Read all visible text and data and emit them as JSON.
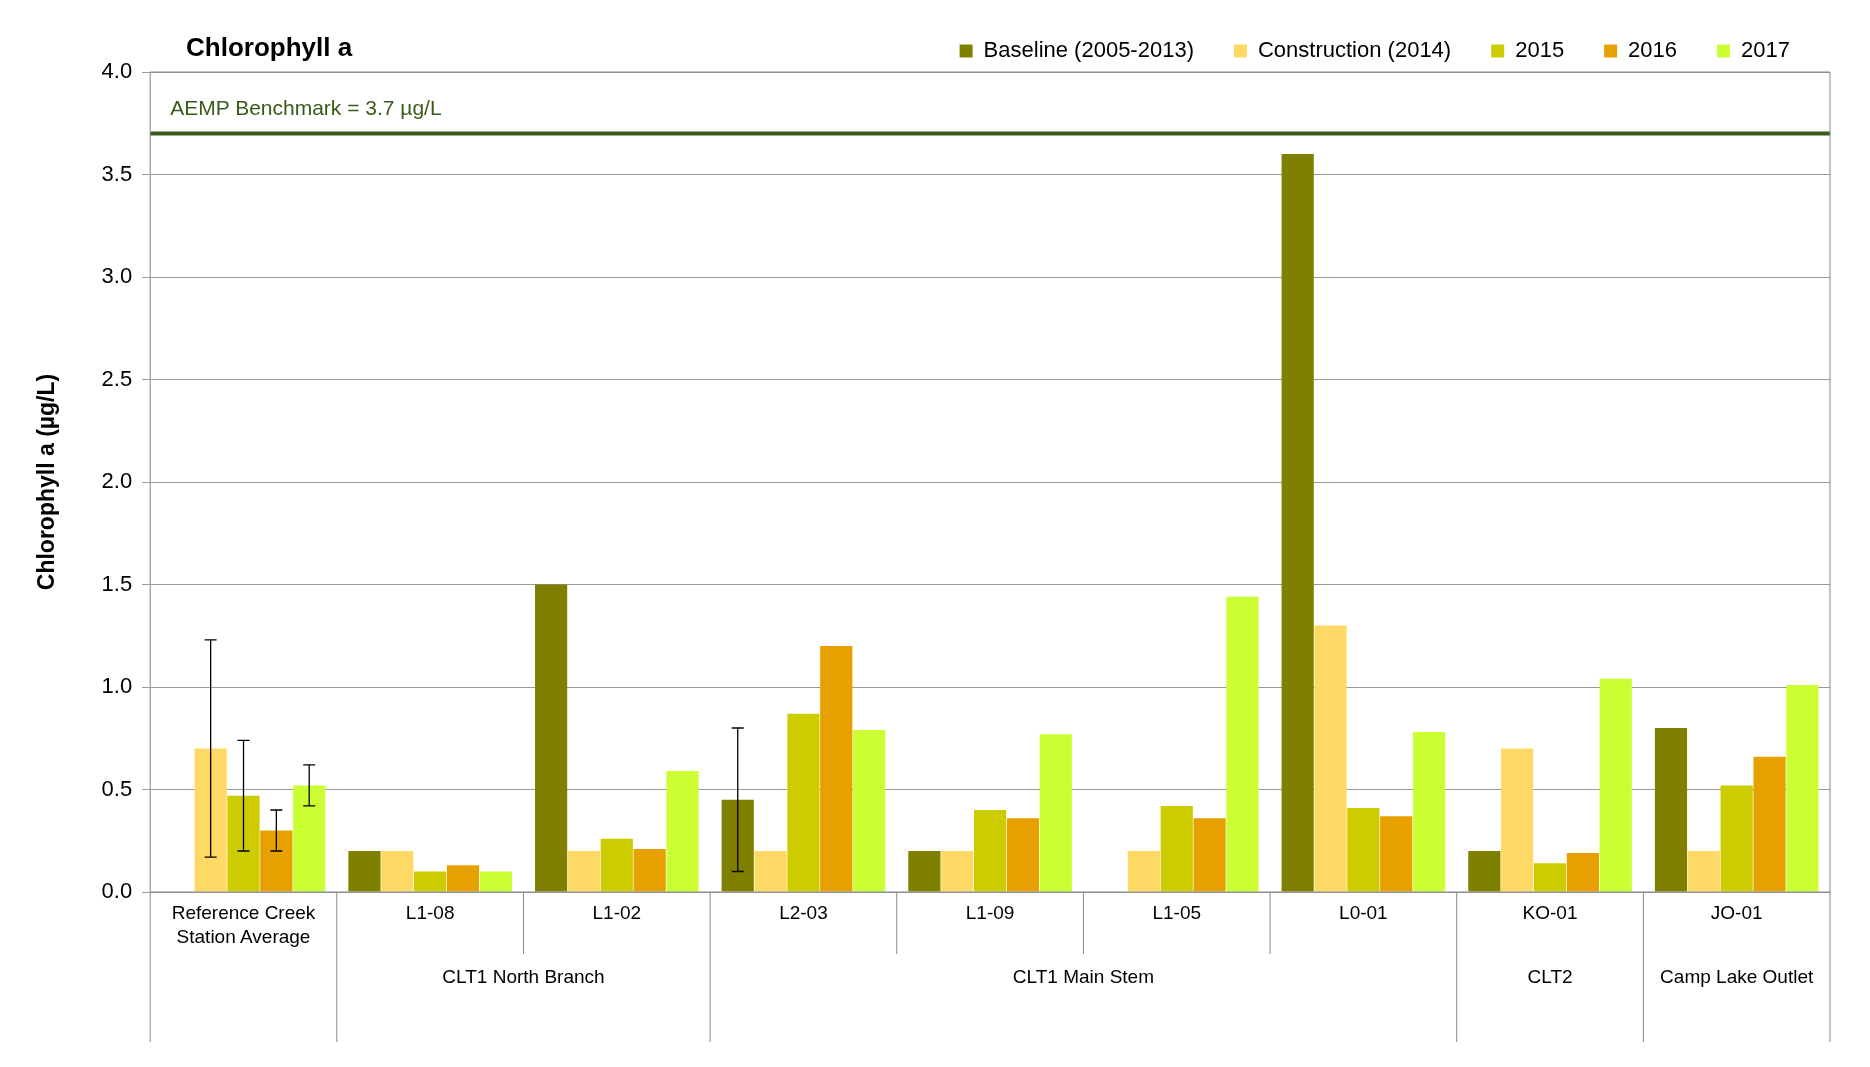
{
  "chart_data": {
    "type": "bar",
    "title": "Chlorophyll a",
    "ylabel": "Chlorophyll a (µg/L)",
    "categories": [
      "Reference Creek Station Average",
      "L1-08",
      "L1-02",
      "L2-03",
      "L1-09",
      "L1-05",
      "L0-01",
      "KO-01",
      "JO-01"
    ],
    "series": [
      {
        "name": "Baseline (2005-2013)",
        "color": "#808000",
        "values": [
          null,
          0.2,
          1.5,
          0.45,
          0.2,
          null,
          3.6,
          0.2,
          0.8
        ],
        "errors": [
          null,
          null,
          null,
          [
            0.1,
            0.8
          ],
          null,
          null,
          null,
          null,
          null
        ]
      },
      {
        "name": "Construction (2014)",
        "color": "#ffd966",
        "values": [
          0.7,
          0.2,
          0.2,
          0.2,
          0.2,
          0.2,
          1.3,
          0.7,
          0.2
        ],
        "errors": [
          [
            0.17,
            1.23
          ],
          null,
          null,
          null,
          null,
          null,
          null,
          null,
          null
        ]
      },
      {
        "name": "2015",
        "color": "#cccc00",
        "values": [
          0.47,
          0.1,
          0.26,
          0.87,
          0.4,
          0.42,
          0.41,
          0.14,
          0.52
        ],
        "errors": [
          [
            0.2,
            0.74
          ],
          null,
          null,
          null,
          null,
          null,
          null,
          null,
          null
        ]
      },
      {
        "name": "2016",
        "color": "#e6a000",
        "values": [
          0.3,
          0.13,
          0.21,
          1.2,
          0.36,
          0.36,
          0.37,
          0.19,
          0.66
        ],
        "errors": [
          [
            0.2,
            0.4
          ],
          null,
          null,
          null,
          null,
          null,
          null,
          null,
          null
        ]
      },
      {
        "name": "2017",
        "color": "#ccff33",
        "values": [
          0.52,
          0.1,
          0.59,
          0.79,
          0.77,
          1.44,
          0.78,
          1.04,
          1.01
        ],
        "errors": [
          [
            0.42,
            0.62
          ],
          null,
          null,
          null,
          null,
          null,
          null,
          null,
          null
        ]
      }
    ],
    "ylim": [
      0,
      4
    ],
    "yticks": [
      {
        "value": 0,
        "label": "0.0"
      },
      {
        "value": 0.5,
        "label": "0.5"
      },
      {
        "value": 1,
        "label": "1.0"
      },
      {
        "value": 1.5,
        "label": "1.5"
      },
      {
        "value": 2,
        "label": "2.0"
      },
      {
        "value": 2.5,
        "label": "2.5"
      },
      {
        "value": 3,
        "label": "3.0"
      },
      {
        "value": 3.5,
        "label": "3.5"
      },
      {
        "value": 4,
        "label": "4.0"
      }
    ],
    "grid": "y",
    "legend": "top right",
    "ref_lines": [
      {
        "axis": "y",
        "value": 3.7,
        "label": "AEMP Benchmark = 3.7 µg/L",
        "color": "#3a5a1a"
      }
    ],
    "annotations": [
      "CLT1 North Branch",
      "CLT1 Main Stem",
      "CLT2",
      "Camp Lake Outlet"
    ]
  }
}
